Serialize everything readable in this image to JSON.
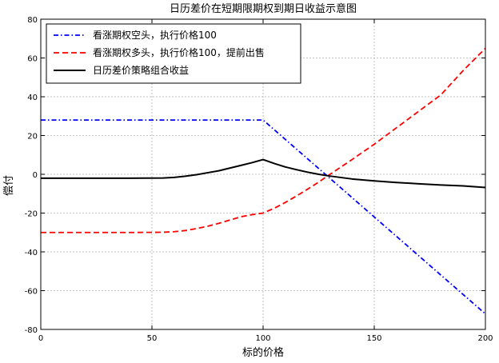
{
  "chart_data": {
    "type": "line",
    "title": "日历差价在短期限期权到期日收益示意图",
    "xlabel": "标的价格",
    "ylabel": "偿付",
    "xlim": [
      0,
      200
    ],
    "ylim": [
      -80,
      80
    ],
    "xticks": [
      0,
      50,
      100,
      150,
      200
    ],
    "yticks": [
      -80,
      -60,
      -40,
      -20,
      0,
      20,
      40,
      60,
      80
    ],
    "grid": true,
    "legend_position": "top-left",
    "series": [
      {
        "name": "看涨期权空头，执行价格100",
        "color": "#0000ff",
        "style": "dashdot",
        "x": [
          0,
          100,
          200
        ],
        "y": [
          28,
          28,
          -72
        ]
      },
      {
        "name": "看涨期权多头，执行价格100，提前出售",
        "color": "#ff0000",
        "style": "dashed",
        "x": [
          0,
          40,
          55,
          60,
          65,
          70,
          75,
          80,
          85,
          90,
          95,
          100,
          105,
          110,
          115,
          120,
          125,
          130,
          140,
          150,
          160,
          170,
          180,
          190,
          200
        ],
        "y": [
          -30,
          -30,
          -29.9,
          -29.6,
          -29,
          -28,
          -26.8,
          -25.3,
          -23.6,
          -21.9,
          -20.8,
          -20,
          -17.5,
          -14.5,
          -11.2,
          -7.7,
          -4,
          -0.1,
          7.6,
          15.5,
          24,
          32.5,
          41,
          53.5,
          65
        ]
      },
      {
        "name": "日历差价策略组合收益",
        "color": "#000000",
        "style": "solid",
        "x": [
          0,
          40,
          55,
          60,
          65,
          70,
          75,
          80,
          85,
          90,
          95,
          100,
          105,
          110,
          115,
          120,
          125,
          130,
          140,
          150,
          160,
          170,
          180,
          190,
          200
        ],
        "y": [
          -2,
          -2,
          -1.9,
          -1.6,
          -1,
          -0.2,
          0.8,
          1.8,
          3.2,
          4.6,
          6,
          7.6,
          5.6,
          3.8,
          2.4,
          1.1,
          0,
          -0.9,
          -2.4,
          -3.4,
          -4.2,
          -4.9,
          -5.5,
          -6,
          -6.8
        ]
      }
    ]
  }
}
